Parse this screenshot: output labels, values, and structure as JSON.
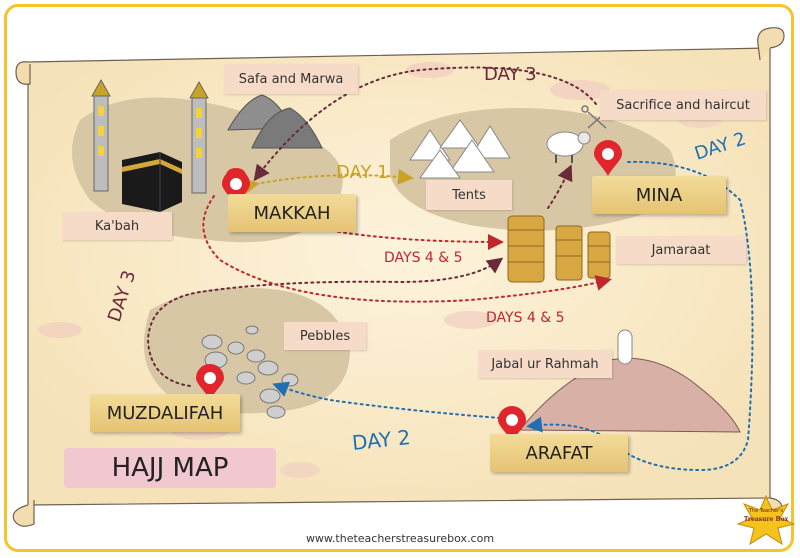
{
  "title": "HAJJ MAP",
  "places": {
    "makkah": "MAKKAH",
    "mina": "MINA",
    "arafat": "ARAFAT",
    "muzdalifah": "MUZDALIFAH"
  },
  "labels": {
    "safa": "Safa and Marwa",
    "kabah": "Ka'bah",
    "tents": "Tents",
    "sacrifice": "Sacrifice and haircut",
    "jamaraat": "Jamaraat",
    "pebbles": "Pebbles",
    "jabal": "Jabal ur Rahmah"
  },
  "days": {
    "day1": "DAY 1",
    "day2_mina": "DAY 2",
    "day2_bottom": "DAY 2",
    "day3_top": "DAY 3",
    "day3_left": "DAY 3",
    "days45_upper": "DAYS 4 & 5",
    "days45_lower": "DAYS 4 & 5"
  },
  "logo": {
    "line1": "The Teacher's",
    "line2": "Treasure Box"
  },
  "website": "www.theteacherstreasurebox.com",
  "colors": {
    "route_day1": "#c9a227",
    "route_day2": "#1f6fb2",
    "route_day3": "#6a2a3a",
    "route_days45": "#c0262e",
    "pin": "#e0252d",
    "place_label": "#e9c97c",
    "small_label": "#f6dcc8",
    "title_bg": "#f2c8d0",
    "border": "#f3c52a"
  }
}
